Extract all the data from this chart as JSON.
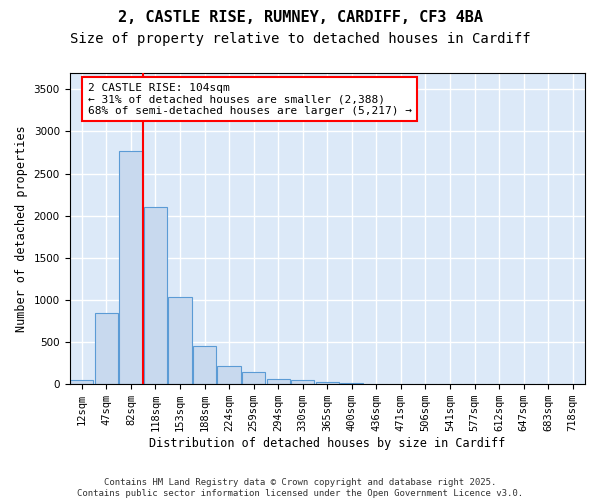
{
  "title_line1": "2, CASTLE RISE, RUMNEY, CARDIFF, CF3 4BA",
  "title_line2": "Size of property relative to detached houses in Cardiff",
  "xlabel": "Distribution of detached houses by size in Cardiff",
  "ylabel": "Number of detached properties",
  "bar_values": [
    55,
    850,
    2770,
    2105,
    1030,
    450,
    215,
    140,
    65,
    55,
    30,
    20,
    5,
    5,
    5,
    0,
    0,
    0,
    0,
    0,
    0
  ],
  "categories": [
    "12sqm",
    "47sqm",
    "82sqm",
    "118sqm",
    "153sqm",
    "188sqm",
    "224sqm",
    "259sqm",
    "294sqm",
    "330sqm",
    "365sqm",
    "400sqm",
    "436sqm",
    "471sqm",
    "506sqm",
    "541sqm",
    "577sqm",
    "612sqm",
    "647sqm",
    "683sqm",
    "718sqm"
  ],
  "bar_color": "#c8d9ee",
  "bar_edge_color": "#5b9bd5",
  "vline_color": "red",
  "annotation_text_line1": "2 CASTLE RISE: 104sqm",
  "annotation_text_line2": "← 31% of detached houses are smaller (2,388)",
  "annotation_text_line3": "68% of semi-detached houses are larger (5,217) →",
  "ylim": [
    0,
    3700
  ],
  "yticks": [
    0,
    500,
    1000,
    1500,
    2000,
    2500,
    3000,
    3500
  ],
  "background_color": "#dce9f8",
  "grid_color": "#ffffff",
  "footnote": "Contains HM Land Registry data © Crown copyright and database right 2025.\nContains public sector information licensed under the Open Government Licence v3.0.",
  "title_fontsize": 11,
  "subtitle_fontsize": 10,
  "axis_label_fontsize": 8.5,
  "tick_fontsize": 7.5,
  "annotation_fontsize": 8,
  "footnote_fontsize": 6.5
}
